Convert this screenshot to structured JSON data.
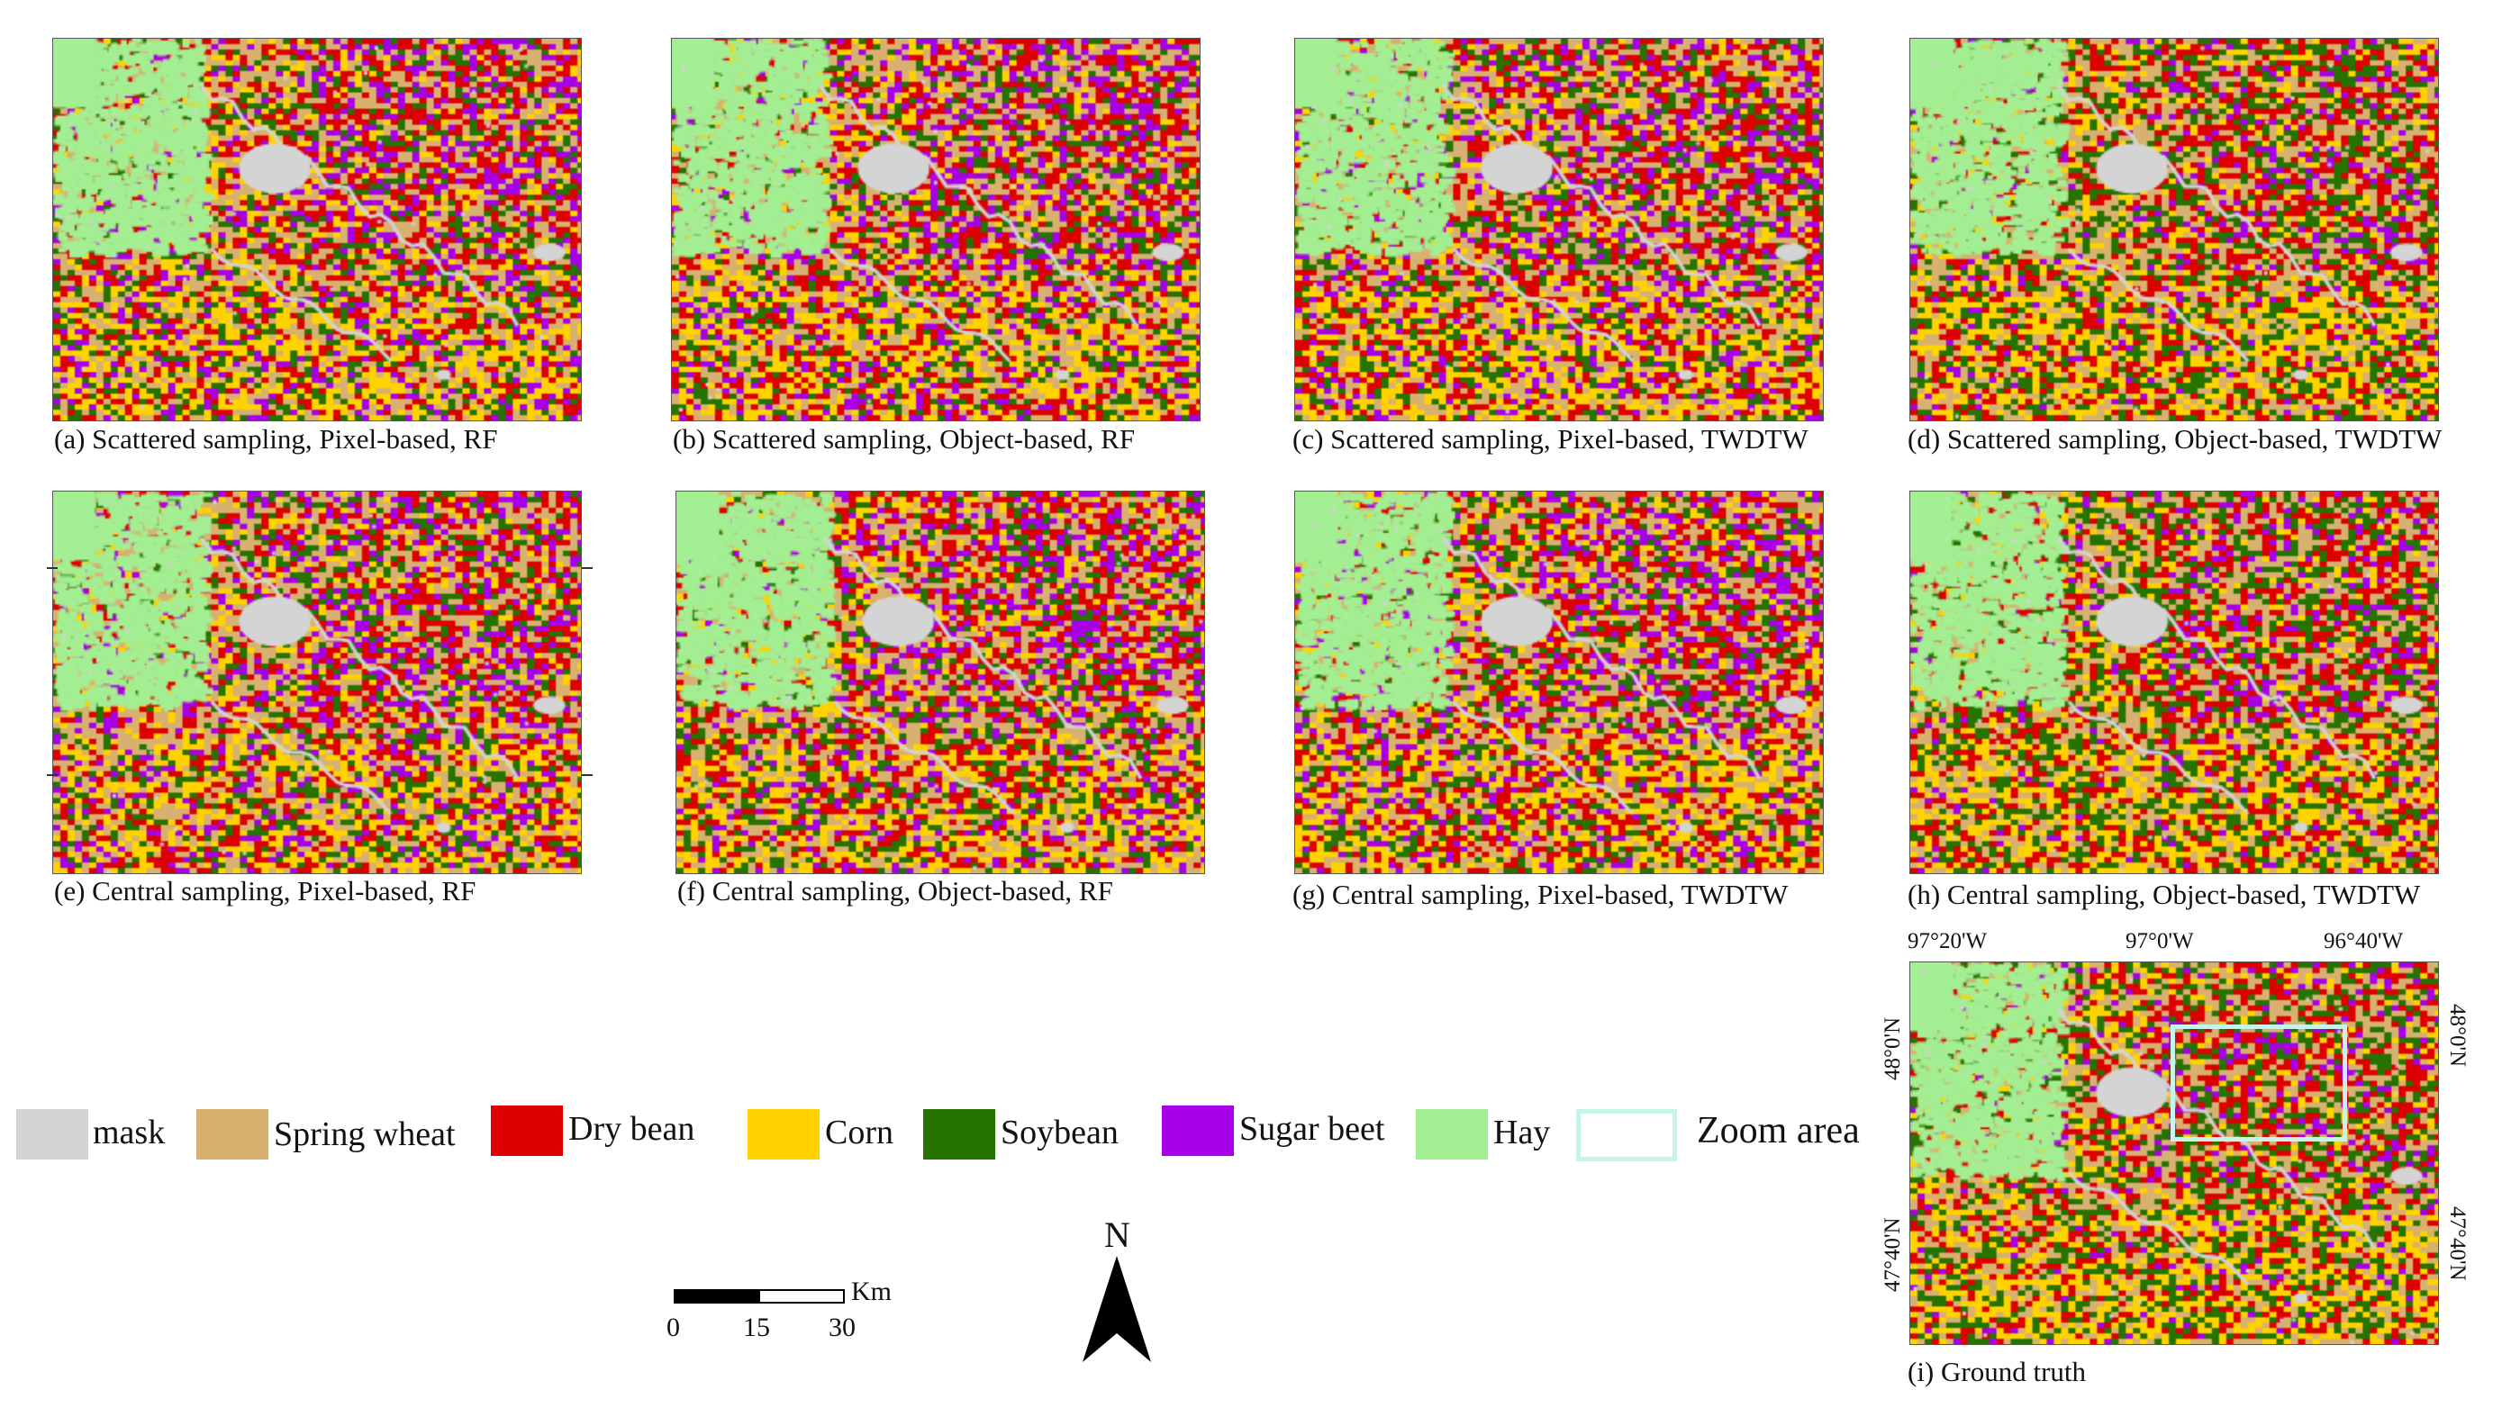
{
  "panels": [
    {
      "id": "a",
      "caption": "(a) Scattered sampling, Pixel-based, RF"
    },
    {
      "id": "b",
      "caption": "(b) Scattered sampling, Object-based, RF"
    },
    {
      "id": "c",
      "caption": "(c) Scattered sampling, Pixel-based, TWDTW"
    },
    {
      "id": "d",
      "caption": "(d) Scattered sampling, Object-based, TWDTW"
    },
    {
      "id": "e",
      "caption": "(e) Central sampling, Pixel-based, RF"
    },
    {
      "id": "f",
      "caption": "(f) Central sampling, Object-based, RF"
    },
    {
      "id": "g",
      "caption": "(g) Central sampling, Pixel-based, TWDTW"
    },
    {
      "id": "h",
      "caption": "(h) Central sampling, Object-based, TWDTW"
    },
    {
      "id": "i",
      "caption": "(i) Ground truth"
    }
  ],
  "legend": [
    {
      "label": "mask",
      "color": "#d4d4d4"
    },
    {
      "label": "Spring wheat",
      "color": "#d8b06f"
    },
    {
      "label": "Dry bean",
      "color": "#dd0000"
    },
    {
      "label": "Corn",
      "color": "#ffd200"
    },
    {
      "label": "Soybean",
      "color": "#267300"
    },
    {
      "label": "Sugar beet",
      "color": "#a800e6"
    },
    {
      "label": "Hay",
      "color": "#a4ee93"
    },
    {
      "label": "Zoom area",
      "color": "#c6f3ea"
    }
  ],
  "coordinates": {
    "top": [
      "97°20'W",
      "97°0'W",
      "96°40'W"
    ],
    "left": [
      "48°0'N",
      "47°40'N"
    ],
    "right": [
      "48°0'N",
      "47°40'N"
    ]
  },
  "scale": {
    "labels": [
      "0",
      "15",
      "30"
    ],
    "unit": "Km"
  },
  "north": "N"
}
